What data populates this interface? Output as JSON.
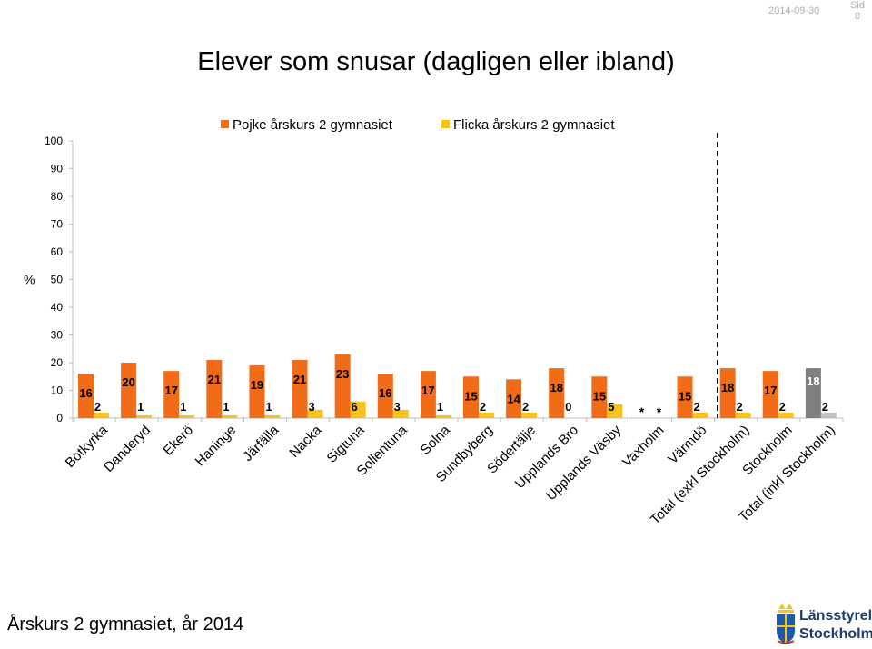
{
  "header": {
    "date": "2014-09-30",
    "sid_label": "Sid",
    "page_number": "8"
  },
  "title": "Elever som snusar (dagligen eller ibland)",
  "footer": "Årskurs 2 gymnasiet, år 2014",
  "logo": {
    "line1": "Länsstyrelsen",
    "line2": "Stockholm"
  },
  "colors": {
    "boys": "#f26b16",
    "girls": "#f6c21b",
    "total_boys": "#7f7f7f",
    "total_girls": "#bfbfbf",
    "axis": "#bfbfbf"
  },
  "chart_data": {
    "type": "bar",
    "ylabel": "%",
    "ylim": [
      0,
      100
    ],
    "yticks": [
      0,
      10,
      20,
      30,
      40,
      50,
      60,
      70,
      80,
      90,
      100
    ],
    "legend_position": "top",
    "categories": [
      "Botkyrka",
      "Danderyd",
      "Ekerö",
      "Haninge",
      "Järfälla",
      "Nacka",
      "Sigtuna",
      "Sollentuna",
      "Solna",
      "Sundbyberg",
      "Södertälje",
      "Upplands Bro",
      "Upplands Väsby",
      "Vaxholm",
      "Värmdö",
      "Total (exkl Stockholm)",
      "Stockholm",
      "Total (inkl Stockholm)"
    ],
    "series": [
      {
        "name": "Pojke årskurs 2 gymnasiet",
        "values": [
          16,
          20,
          17,
          21,
          19,
          21,
          23,
          16,
          17,
          15,
          14,
          18,
          15,
          null,
          15,
          18,
          17,
          18
        ]
      },
      {
        "name": "Flicka årskurs 2 gymnasiet",
        "values": [
          2,
          1,
          1,
          1,
          1,
          3,
          6,
          3,
          1,
          2,
          2,
          0,
          5,
          null,
          2,
          2,
          2,
          2
        ]
      }
    ],
    "missing_marker": "*",
    "annotation": "dashed separator between Värmdö and Total (exkl Stockholm)"
  }
}
